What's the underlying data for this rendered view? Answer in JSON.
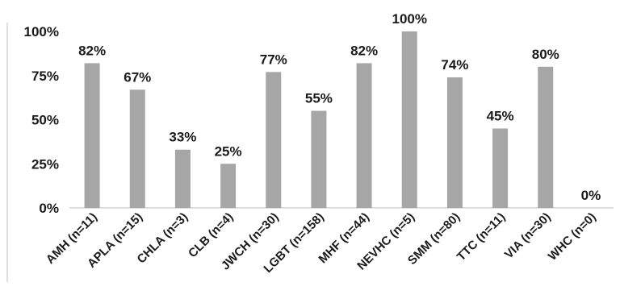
{
  "chart_data": {
    "type": "bar",
    "categories": [
      "AMH (n=11)",
      "APLA (n=15)",
      "CHLA (n=3)",
      "CLB (n=4)",
      "JWCH (n=30)",
      "LGBT (n=158)",
      "MHF (n=44)",
      "NEVHC (n=5)",
      "SMM (n=80)",
      "TTC (n=11)",
      "VIA (n=30)",
      "WHC (n=0)"
    ],
    "values": [
      82,
      67,
      33,
      25,
      77,
      55,
      82,
      100,
      74,
      45,
      80,
      0
    ],
    "data_labels": [
      "82%",
      "67%",
      "33%",
      "25%",
      "77%",
      "55%",
      "82%",
      "100%",
      "74%",
      "45%",
      "80%",
      "0%"
    ],
    "y_ticks": [
      0,
      25,
      50,
      75,
      100
    ],
    "y_tick_labels": [
      "0%",
      "25%",
      "50%",
      "75%",
      "100%"
    ],
    "ylim": [
      0,
      100
    ],
    "title": "",
    "xlabel": "",
    "ylabel": "",
    "grid": false,
    "legend": "none",
    "bar_color": "#a6a6a6"
  }
}
